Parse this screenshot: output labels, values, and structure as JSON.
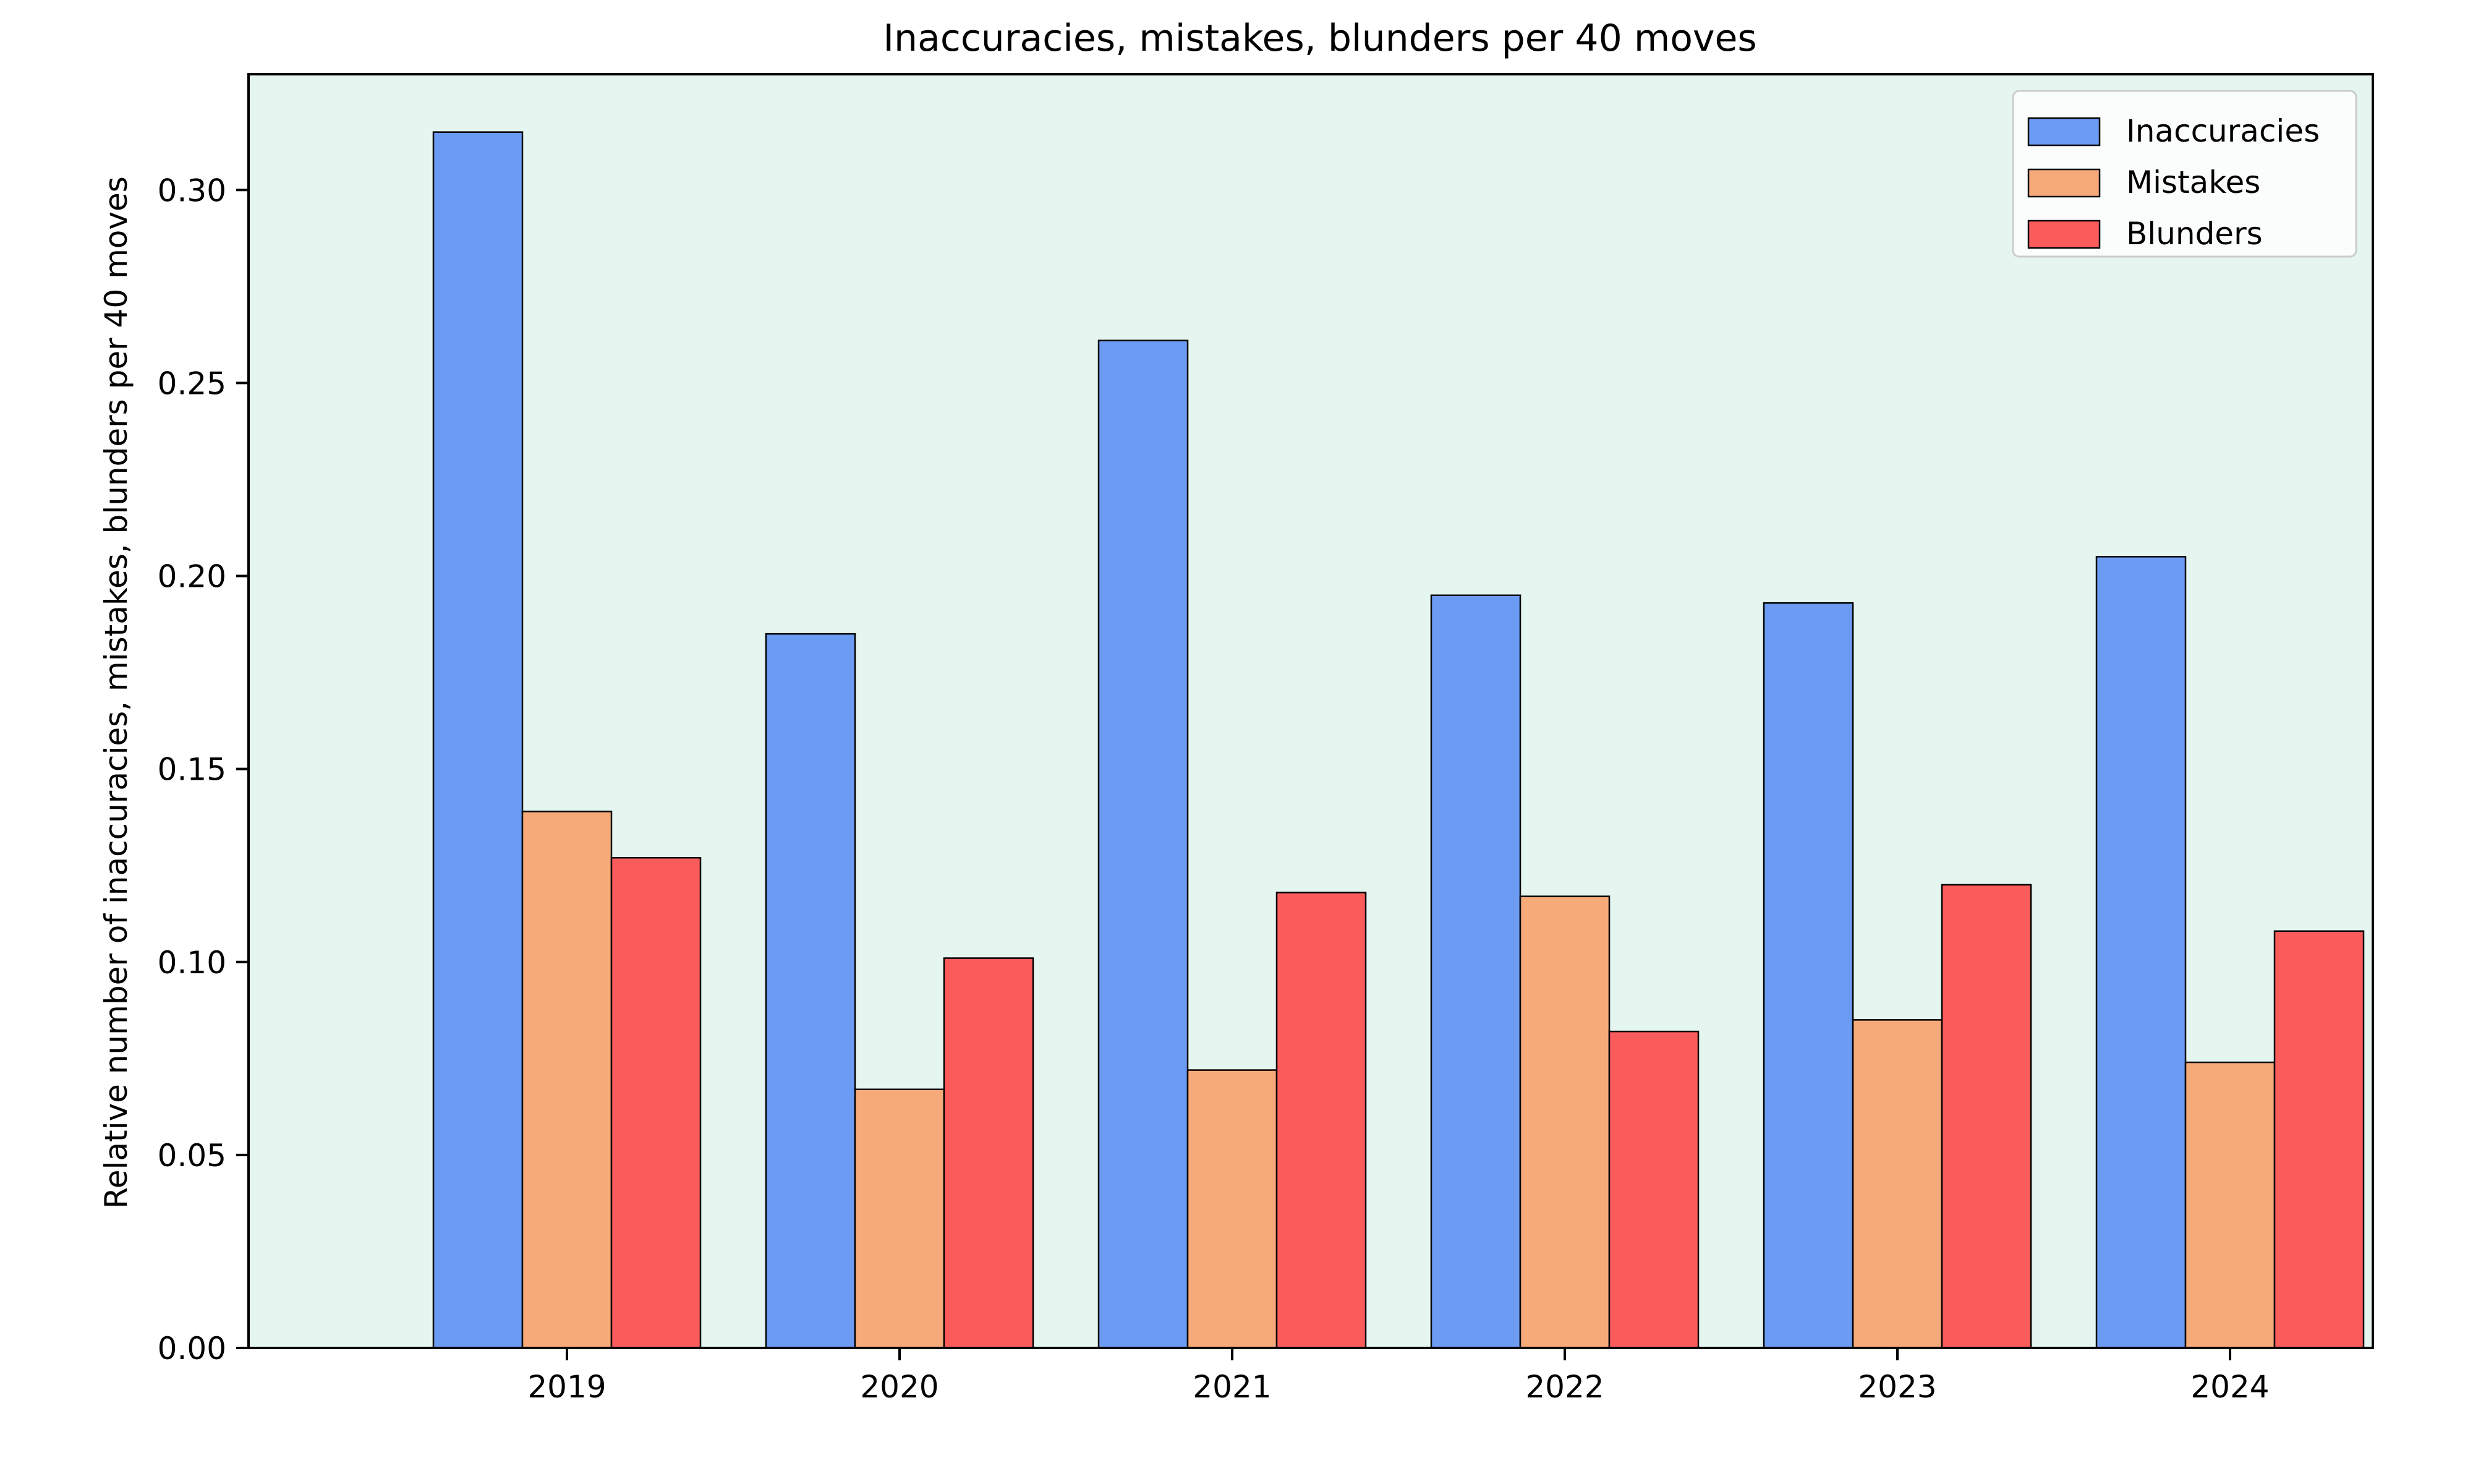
{
  "chart_data": {
    "type": "bar",
    "title": "Inaccuracies, mistakes, blunders per 40 moves",
    "xlabel": "",
    "ylabel": "Relative number of inaccuracies, mistakes, blunders per 40 moves",
    "categories": [
      "2019",
      "2020",
      "2021",
      "2022",
      "2023",
      "2024"
    ],
    "series": [
      {
        "name": "Inaccuracies",
        "color": "#6b9bf2",
        "values": [
          0.315,
          0.185,
          0.261,
          0.195,
          0.193,
          0.205
        ]
      },
      {
        "name": "Mistakes",
        "color": "#f6aa79",
        "values": [
          0.139,
          0.067,
          0.072,
          0.117,
          0.085,
          0.074
        ]
      },
      {
        "name": "Blunders",
        "color": "#fa5c5c",
        "values": [
          0.127,
          0.101,
          0.118,
          0.082,
          0.12,
          0.108
        ]
      }
    ],
    "ylim": [
      0,
      0.33
    ],
    "yticks": [
      "0.00",
      "0.05",
      "0.10",
      "0.15",
      "0.20",
      "0.25",
      "0.30"
    ],
    "grid": false,
    "legend_position": "top-right",
    "plot_background": "#e5f5ef",
    "edge_color": "#000000"
  }
}
